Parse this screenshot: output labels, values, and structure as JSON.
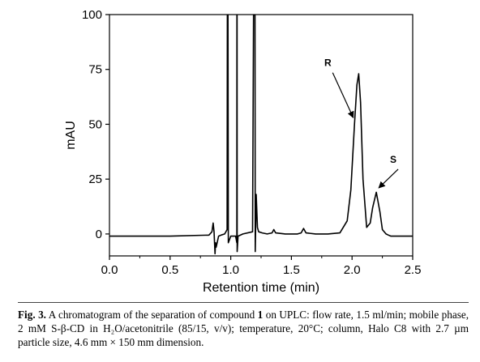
{
  "chart_data": {
    "type": "line",
    "xlabel": "Retention time (min)",
    "ylabel": "mAU",
    "xlim": [
      0,
      2.5
    ],
    "ylim": [
      -10,
      100
    ],
    "x_ticks": [
      "0.0",
      "0.5",
      "1.0",
      "1.5",
      "2.0",
      "2.5"
    ],
    "y_ticks": [
      "0",
      "25",
      "50",
      "75",
      "100"
    ],
    "line_color": "#000000",
    "series": [
      {
        "x": [
          0.0,
          0.5,
          0.82,
          0.845,
          0.855,
          0.862,
          0.87,
          0.875,
          0.88,
          0.9,
          0.92,
          0.95,
          0.97,
          0.972,
          0.975,
          0.977,
          0.98,
          1.0,
          1.04,
          1.05,
          1.051,
          1.052,
          1.053,
          1.06,
          1.1,
          1.18,
          1.188,
          1.19,
          1.195,
          1.2,
          1.202,
          1.205,
          1.21,
          1.22,
          1.23,
          1.26,
          1.3,
          1.34,
          1.355,
          1.37,
          1.45,
          1.55,
          1.58,
          1.6,
          1.62,
          1.7,
          1.8,
          1.9,
          1.96,
          1.99,
          2.02,
          2.04,
          2.055,
          2.07,
          2.09,
          2.12,
          2.15,
          2.17,
          2.2,
          2.23,
          2.25,
          2.28,
          2.3,
          2.32,
          2.5
        ],
        "y": [
          -1,
          -1,
          -0.5,
          1,
          5,
          1,
          -9,
          -4,
          -6,
          -1,
          -0.5,
          0,
          2,
          100,
          100,
          100,
          -4,
          -1,
          -1,
          -4,
          100,
          100,
          -8,
          -1,
          0,
          1,
          100,
          100,
          100,
          100,
          -8,
          3,
          18,
          3,
          1,
          0.5,
          0,
          0.5,
          2,
          0.5,
          0,
          0,
          0.5,
          2.5,
          0.5,
          0,
          0,
          0.5,
          6,
          20,
          50,
          68,
          73,
          60,
          25,
          3,
          5,
          12,
          19,
          10,
          2,
          0,
          -0.5,
          -1,
          -1
        ]
      }
    ],
    "annotations": [
      {
        "label": "R",
        "x": 2.01,
        "y": 53,
        "text_x": 1.8,
        "text_y": 75
      },
      {
        "label": "S",
        "x": 2.22,
        "y": 21,
        "text_x": 2.34,
        "text_y": 31
      }
    ],
    "grid": false
  },
  "caption": {
    "fig_label": "Fig. 3.",
    "part1": " A chromatogram of the separation of compound ",
    "compound": "1",
    "part2": " on UPLC: flow rate, 1.5 ml/min; mobile phase, 2 mM S-β-CD in H₂O/acetonitrile (85/15, v/v); temperature, 20°C; column, Halo C8 with 2.7 µm particle size, 4.6 mm × 150 mm dimension."
  }
}
